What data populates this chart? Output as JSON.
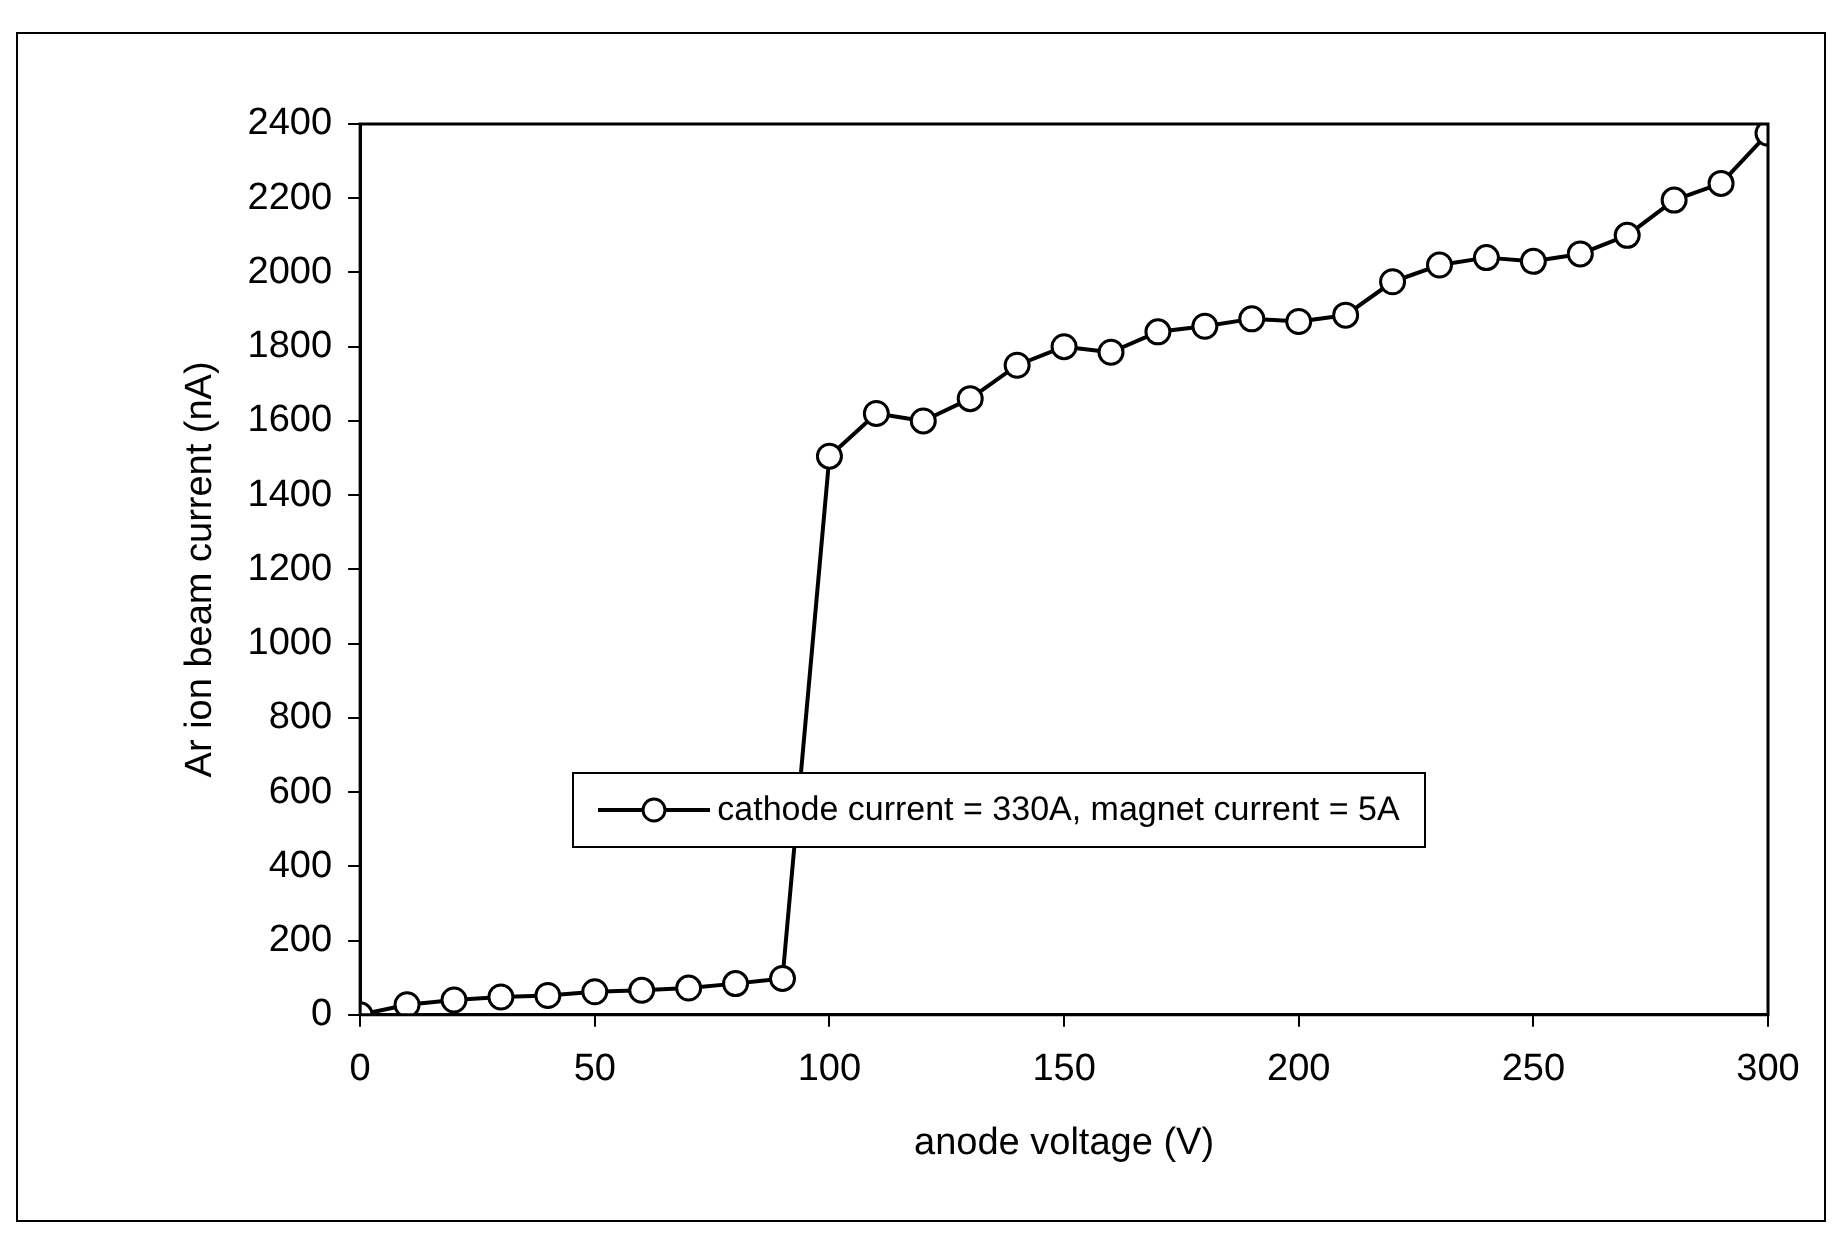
{
  "chart_data": {
    "type": "line",
    "xlabel": "anode voltage (V)",
    "ylabel": "Ar ion beam current (nA)",
    "x": [
      0,
      10,
      20,
      30,
      40,
      50,
      60,
      70,
      80,
      90,
      100,
      110,
      120,
      130,
      140,
      150,
      160,
      170,
      180,
      190,
      200,
      210,
      220,
      230,
      240,
      250,
      260,
      270,
      280,
      290,
      300
    ],
    "series": [
      {
        "name": "cathode current = 330A, magnet current = 5A",
        "color": "#000000",
        "values": [
          0,
          27,
          40,
          48,
          52,
          62,
          66,
          72,
          84,
          98,
          1505,
          1620,
          1600,
          1660,
          1750,
          1800,
          1785,
          1840,
          1855,
          1875,
          1868,
          1885,
          1975,
          2020,
          2040,
          2030,
          2050,
          2100,
          2195,
          2240,
          2375
        ]
      }
    ],
    "xlim": [
      0,
      300
    ],
    "xticks": [
      0,
      50,
      100,
      150,
      200,
      250,
      300
    ],
    "ylim": [
      0,
      2400
    ],
    "yticks": [
      0,
      200,
      400,
      600,
      800,
      1000,
      1200,
      1400,
      1600,
      1800,
      2000,
      2200,
      2400
    ],
    "grid": false,
    "legend": "center",
    "marker": "circle",
    "line_style": "solid"
  }
}
